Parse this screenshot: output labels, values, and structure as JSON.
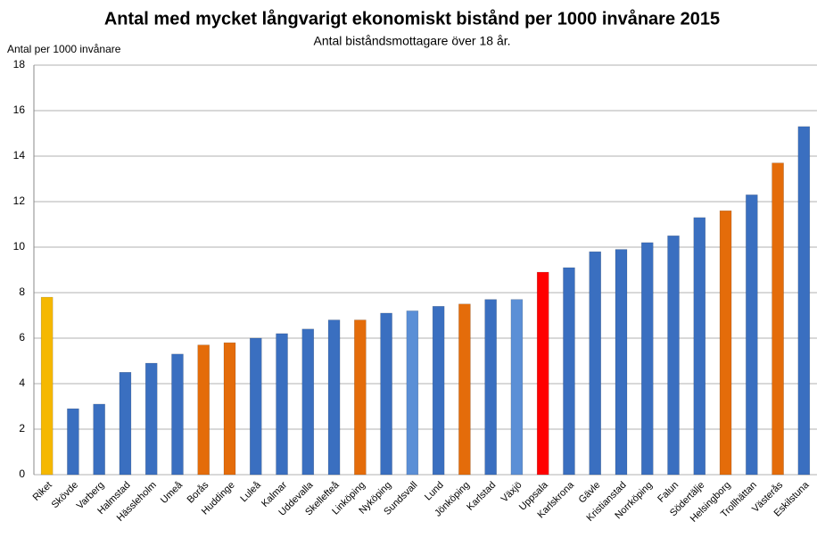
{
  "chart_data": {
    "type": "bar",
    "title": "Antal med mycket långvarigt ekonomiskt bistånd per 1000 invånare 2015",
    "subtitle": "Antal biståndsmottagare över  18 år.",
    "y_label": "Antal per 1000 invånare",
    "categories": [
      "Riket",
      "Skövde",
      "Varberg",
      "Halmstad",
      "Hässleholm",
      "Umeå",
      "Borås",
      "Huddinge",
      "Luleå",
      "Kalmar",
      "Uddevalla",
      "Skellefteå",
      "Linköping",
      "Nyköping",
      "Sundsvall",
      "Lund",
      "Jönköping",
      "Karlstad",
      "Växjö",
      "Uppsala",
      "Karlskrona",
      "Gävle",
      "Kristianstad",
      "Norrköping",
      "Falun",
      "Södertälje",
      "Helsingborg",
      "Trollhättan",
      "Västerås",
      "Eskilstuna"
    ],
    "values": [
      7.8,
      2.9,
      3.1,
      4.5,
      4.9,
      5.3,
      5.7,
      5.8,
      6.0,
      6.2,
      6.4,
      6.8,
      6.8,
      7.1,
      7.2,
      7.4,
      7.5,
      7.7,
      7.7,
      8.9,
      9.1,
      9.8,
      9.9,
      10.2,
      10.5,
      11.3,
      11.6,
      12.3,
      13.7,
      15.3
    ],
    "colors": [
      "#f5b800",
      "#3a6fc0",
      "#3a6fc0",
      "#3a6fc0",
      "#3a6fc0",
      "#3a6fc0",
      "#e46c0a",
      "#e46c0a",
      "#3a6fc0",
      "#3a6fc0",
      "#3a6fc0",
      "#3a6fc0",
      "#e46c0a",
      "#3a6fc0",
      "#5b8fd6",
      "#3a6fc0",
      "#e46c0a",
      "#3a6fc0",
      "#5b8fd6",
      "#ff0000",
      "#3a6fc0",
      "#3a6fc0",
      "#3a6fc0",
      "#3a6fc0",
      "#3a6fc0",
      "#3a6fc0",
      "#e46c0a",
      "#3a6fc0",
      "#e46c0a",
      "#3a6fc0"
    ],
    "ylim": [
      0,
      18
    ],
    "yticks": [
      0,
      2,
      4,
      6,
      8,
      10,
      12,
      14,
      16,
      18
    ],
    "grid": true
  }
}
